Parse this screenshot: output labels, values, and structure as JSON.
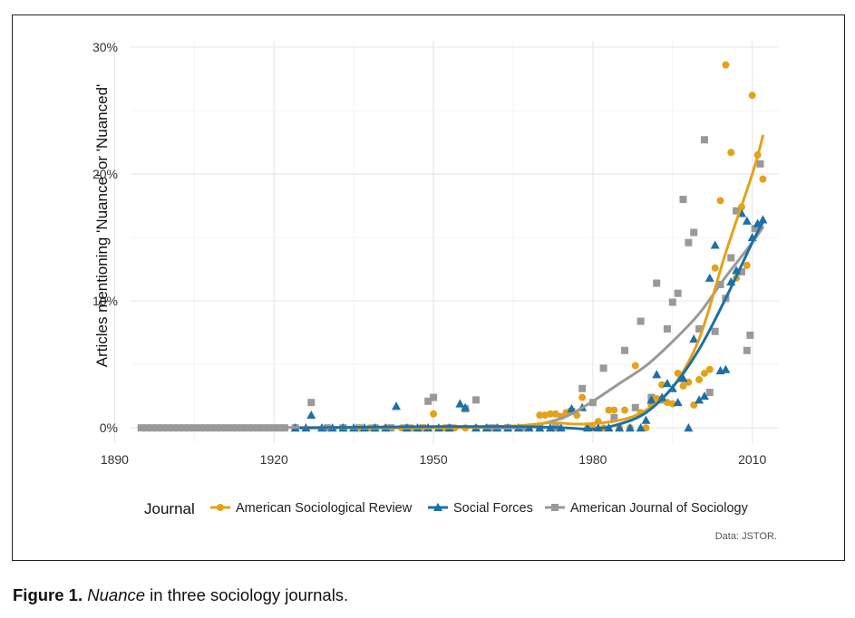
{
  "figure": {
    "label": "Figure 1.",
    "caption_italic": "Nuance",
    "caption_rest": " in three sociology journals."
  },
  "source_note": "Data: JSTOR.",
  "chart_data": {
    "type": "scatter",
    "title": "",
    "xlabel": "",
    "ylabel": "Articles mentioning 'Nuance' or 'Nuanced'",
    "xlim": [
      1893,
      2015
    ],
    "ylim": [
      -1.2,
      30.5
    ],
    "xticks": [
      1890,
      1920,
      1950,
      1980,
      2010
    ],
    "yticks": [
      0,
      10,
      20,
      30
    ],
    "ytick_labels": [
      "0%",
      "10%",
      "20%",
      "30%"
    ],
    "legend_title": "Journal",
    "legend_position": "bottom",
    "grid": true,
    "series": [
      {
        "name": "American Sociological Review",
        "color": "#E3A21A",
        "marker": "circle",
        "points": [
          [
            1936,
            0
          ],
          [
            1938,
            0
          ],
          [
            1941,
            0
          ],
          [
            1944,
            0
          ],
          [
            1946,
            0
          ],
          [
            1948,
            0
          ],
          [
            1950,
            1.1
          ],
          [
            1952,
            0
          ],
          [
            1954,
            0
          ],
          [
            1956,
            0
          ],
          [
            1958,
            0
          ],
          [
            1960,
            0
          ],
          [
            1962,
            0
          ],
          [
            1964,
            0
          ],
          [
            1966,
            0
          ],
          [
            1968,
            0
          ],
          [
            1970,
            1.0
          ],
          [
            1971,
            1.0
          ],
          [
            1972,
            1.1
          ],
          [
            1973,
            1.1
          ],
          [
            1974,
            0.9
          ],
          [
            1975,
            1.2
          ],
          [
            1977,
            1.0
          ],
          [
            1978,
            2.4
          ],
          [
            1979,
            0
          ],
          [
            1980,
            0
          ],
          [
            1981,
            0.5
          ],
          [
            1982,
            0
          ],
          [
            1983,
            1.4
          ],
          [
            1984,
            1.4
          ],
          [
            1985,
            0
          ],
          [
            1986,
            1.4
          ],
          [
            1987,
            0
          ],
          [
            1988,
            4.9
          ],
          [
            1989,
            1.2
          ],
          [
            1990,
            0
          ],
          [
            1991,
            1.8
          ],
          [
            1992,
            2.3
          ],
          [
            1993,
            3.4
          ],
          [
            1994,
            2.0
          ],
          [
            1995,
            1.9
          ],
          [
            1996,
            4.3
          ],
          [
            1997,
            3.3
          ],
          [
            1998,
            3.6
          ],
          [
            1999,
            1.8
          ],
          [
            2000,
            3.8
          ],
          [
            2001,
            4.3
          ],
          [
            2002,
            4.6
          ],
          [
            2003,
            12.6
          ],
          [
            2004,
            17.9
          ],
          [
            2005,
            28.6
          ],
          [
            2006,
            21.7
          ],
          [
            2007,
            11.8
          ],
          [
            2008,
            17.4
          ],
          [
            2009,
            12.8
          ],
          [
            2010,
            26.2
          ],
          [
            2011,
            21.5
          ],
          [
            2012,
            19.6
          ]
        ],
        "trend": [
          [
            1925,
            0
          ],
          [
            1950,
            0
          ],
          [
            1965,
            0.15
          ],
          [
            1972,
            0.4
          ],
          [
            1978,
            0.3
          ],
          [
            1985,
            0.6
          ],
          [
            1990,
            1.4
          ],
          [
            1995,
            3.2
          ],
          [
            2000,
            7.0
          ],
          [
            2005,
            13.8
          ],
          [
            2010,
            20.0
          ],
          [
            2012,
            23.0
          ]
        ]
      },
      {
        "name": "Social Forces",
        "color": "#1F6FA6",
        "marker": "triangle",
        "points": [
          [
            1924,
            0
          ],
          [
            1926,
            0
          ],
          [
            1927,
            1.0
          ],
          [
            1929,
            0
          ],
          [
            1931,
            0
          ],
          [
            1933,
            0
          ],
          [
            1935,
            0
          ],
          [
            1937,
            0
          ],
          [
            1939,
            0
          ],
          [
            1941,
            0
          ],
          [
            1943,
            1.7
          ],
          [
            1945,
            0
          ],
          [
            1947,
            0
          ],
          [
            1949,
            0
          ],
          [
            1951,
            0
          ],
          [
            1953,
            0
          ],
          [
            1955,
            1.9
          ],
          [
            1956,
            1.6
          ],
          [
            1958,
            0
          ],
          [
            1960,
            0
          ],
          [
            1962,
            0
          ],
          [
            1964,
            0
          ],
          [
            1966,
            0
          ],
          [
            1968,
            0
          ],
          [
            1970,
            0
          ],
          [
            1972,
            0
          ],
          [
            1974,
            0
          ],
          [
            1976,
            1.5
          ],
          [
            1978,
            1.6
          ],
          [
            1979,
            0
          ],
          [
            1981,
            0
          ],
          [
            1983,
            0
          ],
          [
            1985,
            0
          ],
          [
            1987,
            0
          ],
          [
            1989,
            0
          ],
          [
            1990,
            0.6
          ],
          [
            1991,
            2.2
          ],
          [
            1992,
            4.2
          ],
          [
            1993,
            2.4
          ],
          [
            1994,
            3.5
          ],
          [
            1995,
            3.1
          ],
          [
            1996,
            2.0
          ],
          [
            1997,
            3.9
          ],
          [
            1998,
            0
          ],
          [
            1999,
            7.0
          ],
          [
            2000,
            2.2
          ],
          [
            2001,
            2.5
          ],
          [
            2002,
            11.8
          ],
          [
            2003,
            14.4
          ],
          [
            2004,
            4.5
          ],
          [
            2005,
            4.6
          ],
          [
            2006,
            11.5
          ],
          [
            2007,
            12.4
          ],
          [
            2008,
            16.9
          ],
          [
            2009,
            16.3
          ],
          [
            2010,
            15.0
          ],
          [
            2011,
            16.1
          ],
          [
            2012,
            16.4
          ]
        ],
        "trend": [
          [
            1925,
            0
          ],
          [
            1950,
            0.1
          ],
          [
            1965,
            0.1
          ],
          [
            1975,
            0
          ],
          [
            1980,
            -0.1
          ],
          [
            1985,
            0.3
          ],
          [
            1990,
            1.2
          ],
          [
            1995,
            3.2
          ],
          [
            2000,
            6.2
          ],
          [
            2005,
            10.2
          ],
          [
            2010,
            14.6
          ],
          [
            2012,
            16.2
          ]
        ]
      },
      {
        "name": "American Journal of Sociology",
        "color": "#999999",
        "marker": "square",
        "points": [
          [
            1895,
            0
          ],
          [
            1896,
            0
          ],
          [
            1897,
            0
          ],
          [
            1898,
            0
          ],
          [
            1899,
            0
          ],
          [
            1900,
            0
          ],
          [
            1901,
            0
          ],
          [
            1902,
            0
          ],
          [
            1903,
            0
          ],
          [
            1904,
            0
          ],
          [
            1905,
            0
          ],
          [
            1906,
            0
          ],
          [
            1907,
            0
          ],
          [
            1908,
            0
          ],
          [
            1909,
            0
          ],
          [
            1910,
            0
          ],
          [
            1911,
            0
          ],
          [
            1912,
            0
          ],
          [
            1913,
            0
          ],
          [
            1914,
            0
          ],
          [
            1915,
            0
          ],
          [
            1916,
            0
          ],
          [
            1917,
            0
          ],
          [
            1918,
            0
          ],
          [
            1919,
            0
          ],
          [
            1920,
            0
          ],
          [
            1921,
            0
          ],
          [
            1922,
            0
          ],
          [
            1924,
            0
          ],
          [
            1927,
            2.0
          ],
          [
            1930,
            0
          ],
          [
            1933,
            0
          ],
          [
            1936,
            0
          ],
          [
            1939,
            0
          ],
          [
            1942,
            0
          ],
          [
            1945,
            0
          ],
          [
            1948,
            0
          ],
          [
            1949,
            2.1
          ],
          [
            1950,
            2.4
          ],
          [
            1953,
            0
          ],
          [
            1956,
            1.5
          ],
          [
            1958,
            2.2
          ],
          [
            1961,
            0
          ],
          [
            1964,
            0
          ],
          [
            1967,
            0
          ],
          [
            1970,
            0
          ],
          [
            1973,
            0
          ],
          [
            1976,
            1.3
          ],
          [
            1978,
            3.1
          ],
          [
            1980,
            2.0
          ],
          [
            1982,
            4.7
          ],
          [
            1984,
            0.8
          ],
          [
            1986,
            6.1
          ],
          [
            1988,
            1.6
          ],
          [
            1989,
            8.4
          ],
          [
            1991,
            2.4
          ],
          [
            1992,
            11.4
          ],
          [
            1993,
            2.2
          ],
          [
            1994,
            7.8
          ],
          [
            1995,
            9.9
          ],
          [
            1996,
            10.6
          ],
          [
            1997,
            18.0
          ],
          [
            1998,
            14.6
          ],
          [
            1999,
            15.4
          ],
          [
            2000,
            7.8
          ],
          [
            2001,
            22.7
          ],
          [
            2002,
            2.8
          ],
          [
            2003,
            7.6
          ],
          [
            2004,
            11.3
          ],
          [
            2005,
            10.2
          ],
          [
            2006,
            13.4
          ],
          [
            2007,
            17.1
          ],
          [
            2008,
            12.3
          ],
          [
            2009,
            6.1
          ],
          [
            2009.6,
            7.3
          ],
          [
            2010.5,
            15.7
          ],
          [
            2011.5,
            20.8
          ]
        ],
        "trend": [
          [
            1895,
            0
          ],
          [
            1950,
            0.05
          ],
          [
            1965,
            0
          ],
          [
            1970,
            0.3
          ],
          [
            1975,
            0.9
          ],
          [
            1980,
            2.1
          ],
          [
            1985,
            3.5
          ],
          [
            1990,
            4.9
          ],
          [
            1995,
            6.8
          ],
          [
            2000,
            9.0
          ],
          [
            2005,
            11.9
          ],
          [
            2010,
            14.6
          ],
          [
            2012,
            15.8
          ]
        ]
      }
    ]
  }
}
